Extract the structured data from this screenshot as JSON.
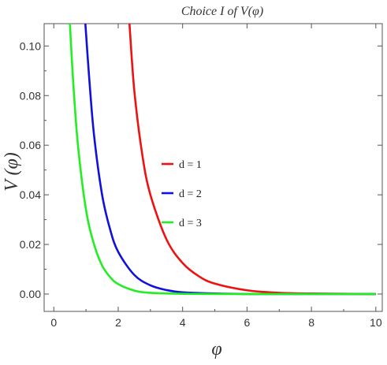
{
  "chart_data": {
    "type": "line",
    "title": "Choice I of V(φ)",
    "xlabel": "φ",
    "ylabel": "V (φ)",
    "xlim": [
      -0.3,
      10.2
    ],
    "ylim": [
      -0.007,
      0.109
    ],
    "x_ticks": [
      0,
      2,
      4,
      6,
      8,
      10
    ],
    "x_tick_labels": [
      "0",
      "2",
      "4",
      "6",
      "8",
      "10"
    ],
    "y_ticks": [
      0.0,
      0.02,
      0.04,
      0.06,
      0.08,
      0.1
    ],
    "y_tick_labels": [
      "0.00",
      "0.02",
      "0.04",
      "0.06",
      "0.08",
      "0.10"
    ],
    "grid": false,
    "legend_position": "center",
    "series": [
      {
        "name": "d = 1",
        "color": "#ee1111",
        "x": [
          2.35,
          2.5,
          2.75,
          3.0,
          3.5,
          4.0,
          4.5,
          5.0,
          6.0,
          7.0,
          8.0,
          9.0,
          10.0
        ],
        "y": [
          0.109,
          0.082,
          0.056,
          0.04,
          0.022,
          0.0125,
          0.0072,
          0.0042,
          0.0015,
          0.0005,
          0.0002,
          0.0001,
          0.0
        ]
      },
      {
        "name": "d = 2",
        "color": "#1111dd",
        "x": [
          0.98,
          1.1,
          1.25,
          1.5,
          1.75,
          2.0,
          2.5,
          3.0,
          3.5,
          4.0,
          5.0,
          6.0,
          8.0,
          10.0
        ],
        "y": [
          0.109,
          0.087,
          0.064,
          0.04,
          0.026,
          0.017,
          0.0077,
          0.0035,
          0.0016,
          0.0007,
          0.0002,
          0.0,
          0.0,
          0.0
        ]
      },
      {
        "name": "d = 3",
        "color": "#22ee22",
        "x": [
          0.5,
          0.6,
          0.75,
          1.0,
          1.25,
          1.5,
          1.75,
          2.0,
          2.5,
          3.0,
          4.0,
          6.0,
          8.0,
          10.0
        ],
        "y": [
          0.109,
          0.086,
          0.06,
          0.034,
          0.02,
          0.0115,
          0.0068,
          0.004,
          0.0014,
          0.0005,
          0.0001,
          0.0,
          0.0,
          0.0
        ]
      }
    ]
  }
}
